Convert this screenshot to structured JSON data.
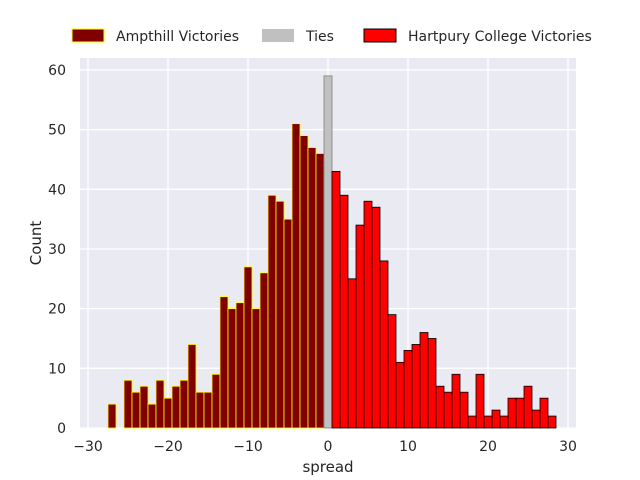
{
  "chart_data": {
    "type": "bar",
    "title": "",
    "xlabel": "spread",
    "ylabel": "Count",
    "xlim": [
      -31,
      31
    ],
    "ylim": [
      0,
      62
    ],
    "x_ticks": [
      -30,
      -20,
      -10,
      0,
      10,
      20,
      30
    ],
    "x_tick_labels": [
      "−30",
      "−20",
      "−10",
      "0",
      "10",
      "20",
      "30"
    ],
    "y_ticks": [
      0,
      10,
      20,
      30,
      40,
      50,
      60
    ],
    "y_tick_labels": [
      "0",
      "10",
      "20",
      "30",
      "40",
      "50",
      "60"
    ],
    "grid": true,
    "legend": {
      "placement": "top-center",
      "columns": 3
    },
    "bin_width": 1,
    "series": [
      {
        "name": "Ampthill Victories",
        "fill": "#800000",
        "edge": "#ffff00",
        "x": [
          -27,
          -25,
          -24,
          -23,
          -22,
          -21,
          -20,
          -19,
          -18,
          -17,
          -16,
          -15,
          -14,
          -13,
          -12,
          -11,
          -10,
          -9,
          -8,
          -7,
          -6,
          -5,
          -4,
          -3,
          -2,
          -1
        ],
        "values": [
          4,
          8,
          6,
          7,
          4,
          8,
          5,
          7,
          8,
          14,
          6,
          6,
          9,
          22,
          20,
          21,
          27,
          20,
          26,
          39,
          38,
          35,
          51,
          49,
          47,
          46
        ]
      },
      {
        "name": "Ties",
        "fill": "#c0c0c0",
        "edge": "#808080",
        "x": [
          0
        ],
        "values": [
          59
        ]
      },
      {
        "name": "Hartpury College Victories",
        "fill": "#ff0000",
        "edge": "#000000",
        "x": [
          1,
          2,
          3,
          4,
          5,
          6,
          7,
          8,
          9,
          10,
          11,
          12,
          13,
          14,
          15,
          16,
          17,
          18,
          19,
          20,
          21,
          22,
          23,
          24,
          25,
          26,
          27,
          28
        ],
        "values": [
          43,
          39,
          25,
          34,
          38,
          37,
          28,
          19,
          11,
          13,
          14,
          16,
          15,
          7,
          6,
          9,
          6,
          2,
          9,
          2,
          3,
          2,
          5,
          5,
          7,
          3,
          5,
          2
        ]
      }
    ]
  }
}
